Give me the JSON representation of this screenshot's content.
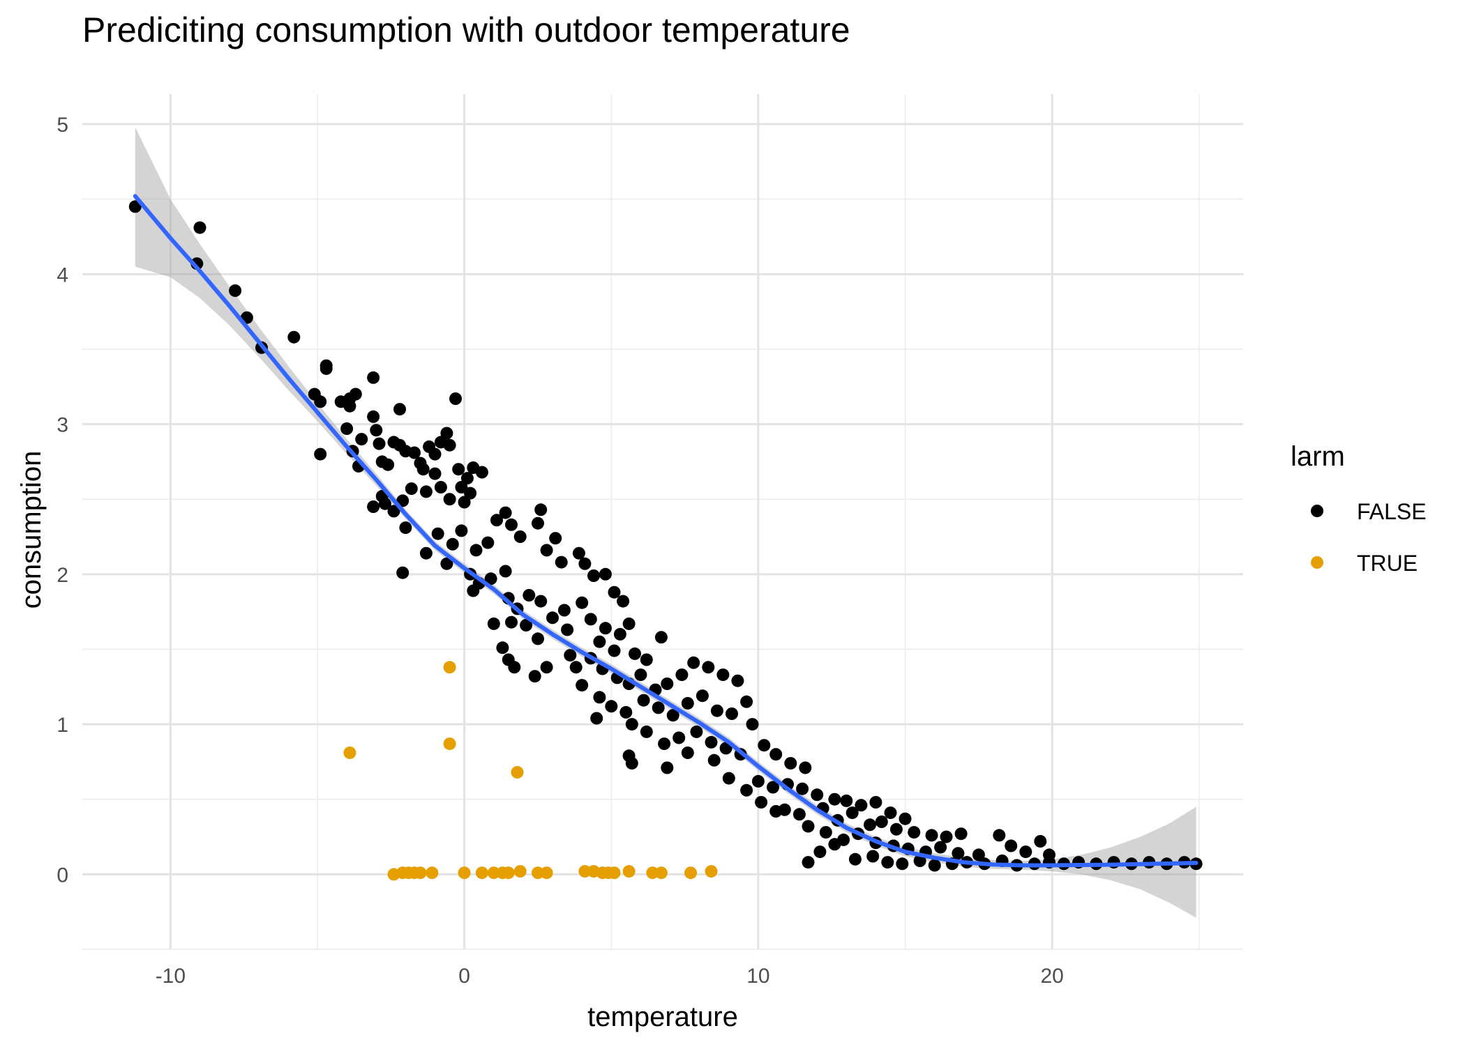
{
  "chart_data": {
    "type": "scatter",
    "title": "Prediciting consumption with outdoor temperature",
    "xlabel": "temperature",
    "ylabel": "consumption",
    "xlim": [
      -13,
      26.5
    ],
    "ylim": [
      -0.5,
      5.2
    ],
    "x_ticks": [
      -10,
      0,
      10,
      20
    ],
    "x_tick_labels": [
      "-10",
      "0",
      "10",
      "20"
    ],
    "y_ticks": [
      0,
      1,
      2,
      3,
      4,
      5
    ],
    "y_tick_labels": [
      "0",
      "1",
      "2",
      "3",
      "4",
      "5"
    ],
    "grid": true,
    "legend": {
      "title": "larm",
      "position": "right",
      "entries": [
        {
          "label": "FALSE",
          "color": "#000000"
        },
        {
          "label": "TRUE",
          "color": "#E69F00"
        }
      ]
    },
    "series": [
      {
        "name": "FALSE",
        "color": "#000000",
        "points": [
          [
            -11.2,
            4.45
          ],
          [
            -9.0,
            4.31
          ],
          [
            -9.1,
            4.07
          ],
          [
            -7.8,
            3.89
          ],
          [
            -7.4,
            3.71
          ],
          [
            -6.9,
            3.51
          ],
          [
            -5.8,
            3.58
          ],
          [
            -4.7,
            3.39
          ],
          [
            -4.7,
            3.37
          ],
          [
            -5.1,
            3.2
          ],
          [
            -4.9,
            3.15
          ],
          [
            -4.2,
            3.15
          ],
          [
            -3.9,
            3.17
          ],
          [
            -3.7,
            3.2
          ],
          [
            -3.9,
            3.12
          ],
          [
            -3.1,
            3.31
          ],
          [
            -4.0,
            2.97
          ],
          [
            -3.5,
            2.9
          ],
          [
            -3.8,
            2.82
          ],
          [
            -4.9,
            2.8
          ],
          [
            -3.6,
            2.72
          ],
          [
            -3.1,
            3.05
          ],
          [
            -3.0,
            2.96
          ],
          [
            -2.9,
            2.87
          ],
          [
            -2.8,
            2.75
          ],
          [
            -2.6,
            2.73
          ],
          [
            -2.8,
            2.52
          ],
          [
            -3.1,
            2.45
          ],
          [
            -2.7,
            2.47
          ],
          [
            -2.2,
            3.1
          ],
          [
            -2.4,
            2.88
          ],
          [
            -2.2,
            2.86
          ],
          [
            -2.0,
            2.82
          ],
          [
            -1.7,
            2.81
          ],
          [
            -1.5,
            2.74
          ],
          [
            -1.2,
            2.85
          ],
          [
            -1.0,
            2.8
          ],
          [
            -0.8,
            2.88
          ],
          [
            -0.6,
            2.94
          ],
          [
            -0.5,
            2.86
          ],
          [
            -1.4,
            2.7
          ],
          [
            -1.0,
            2.67
          ],
          [
            -0.3,
            3.17
          ],
          [
            -0.2,
            2.7
          ],
          [
            0.1,
            2.64
          ],
          [
            0.3,
            2.71
          ],
          [
            0.6,
            2.68
          ],
          [
            -0.1,
            2.58
          ],
          [
            0.2,
            2.54
          ],
          [
            -0.5,
            2.5
          ],
          [
            -0.8,
            2.58
          ],
          [
            0.0,
            2.48
          ],
          [
            -1.3,
            2.55
          ],
          [
            -1.8,
            2.57
          ],
          [
            -2.1,
            2.49
          ],
          [
            -2.4,
            2.42
          ],
          [
            -2.0,
            2.31
          ],
          [
            -1.3,
            2.14
          ],
          [
            -0.9,
            2.27
          ],
          [
            -0.4,
            2.2
          ],
          [
            -0.1,
            2.29
          ],
          [
            0.4,
            2.16
          ],
          [
            0.8,
            2.21
          ],
          [
            1.1,
            2.36
          ],
          [
            1.4,
            2.41
          ],
          [
            1.6,
            2.33
          ],
          [
            1.9,
            2.25
          ],
          [
            2.5,
            2.34
          ],
          [
            2.6,
            2.43
          ],
          [
            3.1,
            2.24
          ],
          [
            0.2,
            2.0
          ],
          [
            -0.6,
            2.07
          ],
          [
            -2.1,
            2.01
          ],
          [
            0.5,
            1.94
          ],
          [
            0.9,
            1.97
          ],
          [
            1.4,
            2.02
          ],
          [
            2.8,
            2.16
          ],
          [
            3.3,
            2.08
          ],
          [
            3.9,
            2.14
          ],
          [
            4.1,
            2.07
          ],
          [
            4.4,
            1.99
          ],
          [
            4.8,
            2.0
          ],
          [
            5.1,
            1.88
          ],
          [
            5.4,
            1.82
          ],
          [
            0.3,
            1.89
          ],
          [
            1.5,
            1.84
          ],
          [
            1.8,
            1.77
          ],
          [
            2.2,
            1.86
          ],
          [
            2.6,
            1.82
          ],
          [
            3.0,
            1.71
          ],
          [
            3.4,
            1.76
          ],
          [
            4.0,
            1.81
          ],
          [
            4.3,
            1.7
          ],
          [
            4.8,
            1.64
          ],
          [
            5.3,
            1.6
          ],
          [
            5.6,
            1.67
          ],
          [
            1.0,
            1.67
          ],
          [
            1.6,
            1.68
          ],
          [
            2.1,
            1.66
          ],
          [
            2.5,
            1.57
          ],
          [
            3.5,
            1.63
          ],
          [
            4.6,
            1.55
          ],
          [
            5.1,
            1.49
          ],
          [
            5.8,
            1.47
          ],
          [
            6.2,
            1.43
          ],
          [
            6.7,
            1.58
          ],
          [
            1.3,
            1.51
          ],
          [
            1.5,
            1.43
          ],
          [
            1.7,
            1.38
          ],
          [
            2.4,
            1.32
          ],
          [
            2.8,
            1.38
          ],
          [
            3.6,
            1.46
          ],
          [
            3.8,
            1.38
          ],
          [
            4.3,
            1.44
          ],
          [
            4.7,
            1.37
          ],
          [
            5.2,
            1.31
          ],
          [
            5.6,
            1.27
          ],
          [
            6.0,
            1.33
          ],
          [
            6.5,
            1.23
          ],
          [
            6.9,
            1.27
          ],
          [
            7.4,
            1.33
          ],
          [
            7.8,
            1.41
          ],
          [
            8.3,
            1.38
          ],
          [
            8.8,
            1.33
          ],
          [
            9.3,
            1.29
          ],
          [
            4.0,
            1.26
          ],
          [
            4.6,
            1.18
          ],
          [
            5.0,
            1.12
          ],
          [
            5.5,
            1.08
          ],
          [
            6.1,
            1.16
          ],
          [
            6.6,
            1.11
          ],
          [
            7.1,
            1.06
          ],
          [
            7.6,
            1.14
          ],
          [
            8.1,
            1.19
          ],
          [
            8.6,
            1.09
          ],
          [
            9.1,
            1.07
          ],
          [
            9.6,
            1.15
          ],
          [
            4.5,
            1.04
          ],
          [
            5.7,
            1.0
          ],
          [
            6.2,
            0.95
          ],
          [
            6.8,
            0.87
          ],
          [
            7.3,
            0.91
          ],
          [
            7.9,
            0.95
          ],
          [
            8.4,
            0.88
          ],
          [
            8.9,
            0.84
          ],
          [
            9.4,
            0.8
          ],
          [
            9.8,
            1.0
          ],
          [
            10.2,
            0.86
          ],
          [
            10.6,
            0.8
          ],
          [
            11.1,
            0.74
          ],
          [
            11.6,
            0.71
          ],
          [
            5.6,
            0.79
          ],
          [
            5.7,
            0.74
          ],
          [
            6.9,
            0.71
          ],
          [
            7.6,
            0.81
          ],
          [
            8.5,
            0.76
          ],
          [
            9.0,
            0.64
          ],
          [
            9.6,
            0.56
          ],
          [
            10.0,
            0.62
          ],
          [
            10.5,
            0.58
          ],
          [
            11.0,
            0.6
          ],
          [
            11.5,
            0.57
          ],
          [
            12.0,
            0.53
          ],
          [
            12.6,
            0.5
          ],
          [
            13.0,
            0.49
          ],
          [
            13.5,
            0.46
          ],
          [
            14.0,
            0.48
          ],
          [
            14.5,
            0.41
          ],
          [
            15.0,
            0.37
          ],
          [
            10.1,
            0.48
          ],
          [
            10.9,
            0.43
          ],
          [
            11.4,
            0.4
          ],
          [
            12.2,
            0.44
          ],
          [
            12.7,
            0.36
          ],
          [
            13.2,
            0.41
          ],
          [
            13.8,
            0.33
          ],
          [
            14.2,
            0.35
          ],
          [
            14.7,
            0.3
          ],
          [
            15.3,
            0.28
          ],
          [
            15.9,
            0.26
          ],
          [
            16.4,
            0.25
          ],
          [
            16.9,
            0.27
          ],
          [
            10.6,
            0.42
          ],
          [
            11.7,
            0.32
          ],
          [
            12.3,
            0.28
          ],
          [
            12.9,
            0.23
          ],
          [
            13.4,
            0.27
          ],
          [
            14.0,
            0.21
          ],
          [
            14.6,
            0.19
          ],
          [
            15.1,
            0.17
          ],
          [
            15.7,
            0.15
          ],
          [
            16.2,
            0.18
          ],
          [
            16.8,
            0.14
          ],
          [
            17.5,
            0.13
          ],
          [
            18.2,
            0.26
          ],
          [
            18.6,
            0.19
          ],
          [
            19.1,
            0.15
          ],
          [
            19.6,
            0.22
          ],
          [
            19.9,
            0.13
          ],
          [
            11.7,
            0.08
          ],
          [
            12.1,
            0.15
          ],
          [
            12.6,
            0.2
          ],
          [
            13.3,
            0.1
          ],
          [
            13.9,
            0.12
          ],
          [
            14.4,
            0.08
          ],
          [
            14.9,
            0.07
          ],
          [
            15.5,
            0.09
          ],
          [
            16.0,
            0.06
          ],
          [
            16.6,
            0.07
          ],
          [
            17.1,
            0.08
          ],
          [
            17.7,
            0.07
          ],
          [
            18.3,
            0.09
          ],
          [
            18.8,
            0.06
          ],
          [
            19.4,
            0.07
          ],
          [
            19.9,
            0.08
          ],
          [
            20.4,
            0.07
          ],
          [
            20.9,
            0.08
          ],
          [
            21.5,
            0.07
          ],
          [
            22.1,
            0.08
          ],
          [
            22.7,
            0.07
          ],
          [
            23.3,
            0.08
          ],
          [
            23.9,
            0.07
          ],
          [
            24.5,
            0.08
          ],
          [
            24.9,
            0.07
          ]
        ]
      },
      {
        "name": "TRUE",
        "color": "#E69F00",
        "points": [
          [
            -0.5,
            1.38
          ],
          [
            -3.9,
            0.81
          ],
          [
            -0.5,
            0.87
          ],
          [
            1.8,
            0.68
          ],
          [
            -2.4,
            0.0
          ],
          [
            -2.1,
            0.01
          ],
          [
            -1.9,
            0.01
          ],
          [
            -1.7,
            0.01
          ],
          [
            -1.5,
            0.01
          ],
          [
            -1.1,
            0.01
          ],
          [
            0.0,
            0.01
          ],
          [
            0.6,
            0.01
          ],
          [
            1.0,
            0.01
          ],
          [
            1.3,
            0.01
          ],
          [
            1.5,
            0.01
          ],
          [
            1.9,
            0.02
          ],
          [
            2.5,
            0.01
          ],
          [
            2.8,
            0.01
          ],
          [
            4.1,
            0.02
          ],
          [
            4.4,
            0.02
          ],
          [
            4.7,
            0.01
          ],
          [
            4.9,
            0.01
          ],
          [
            5.1,
            0.01
          ],
          [
            5.6,
            0.02
          ],
          [
            6.4,
            0.01
          ],
          [
            6.7,
            0.01
          ],
          [
            7.7,
            0.01
          ],
          [
            8.4,
            0.02
          ]
        ]
      }
    ],
    "smooth": {
      "color": "#3366FF",
      "ribbon_color": "#999999",
      "points": [
        [
          -11.2,
          4.52,
          4.05,
          4.98
        ],
        [
          -10.0,
          4.24,
          3.98,
          4.5
        ],
        [
          -9.0,
          4.02,
          3.84,
          4.2
        ],
        [
          -8.0,
          3.79,
          3.66,
          3.92
        ],
        [
          -7.0,
          3.55,
          3.45,
          3.65
        ],
        [
          -6.0,
          3.31,
          3.23,
          3.39
        ],
        [
          -5.0,
          3.08,
          3.02,
          3.14
        ],
        [
          -4.0,
          2.85,
          2.8,
          2.9
        ],
        [
          -3.0,
          2.63,
          2.59,
          2.67
        ],
        [
          -2.0,
          2.4,
          2.37,
          2.43
        ],
        [
          -1.0,
          2.19,
          2.16,
          2.22
        ],
        [
          0.0,
          2.04,
          2.01,
          2.07
        ],
        [
          1.0,
          1.9,
          1.87,
          1.93
        ],
        [
          2.0,
          1.73,
          1.7,
          1.76
        ],
        [
          3.0,
          1.6,
          1.57,
          1.63
        ],
        [
          4.0,
          1.48,
          1.45,
          1.51
        ],
        [
          5.0,
          1.37,
          1.34,
          1.4
        ],
        [
          6.0,
          1.25,
          1.22,
          1.28
        ],
        [
          7.0,
          1.13,
          1.1,
          1.16
        ],
        [
          8.0,
          1.01,
          0.98,
          1.04
        ],
        [
          9.0,
          0.88,
          0.85,
          0.91
        ],
        [
          10.0,
          0.72,
          0.69,
          0.75
        ],
        [
          11.0,
          0.57,
          0.54,
          0.6
        ],
        [
          12.0,
          0.43,
          0.4,
          0.46
        ],
        [
          13.0,
          0.31,
          0.28,
          0.34
        ],
        [
          14.0,
          0.22,
          0.19,
          0.25
        ],
        [
          15.0,
          0.15,
          0.12,
          0.18
        ],
        [
          16.0,
          0.11,
          0.08,
          0.14
        ],
        [
          17.0,
          0.08,
          0.05,
          0.11
        ],
        [
          18.0,
          0.065,
          0.035,
          0.095
        ],
        [
          19.0,
          0.06,
          0.03,
          0.09
        ],
        [
          20.0,
          0.06,
          0.02,
          0.1
        ],
        [
          21.0,
          0.062,
          0.0,
          0.13
        ],
        [
          22.0,
          0.064,
          -0.04,
          0.18
        ],
        [
          23.0,
          0.068,
          -0.1,
          0.25
        ],
        [
          24.0,
          0.072,
          -0.19,
          0.34
        ],
        [
          24.9,
          0.076,
          -0.29,
          0.45
        ]
      ]
    }
  }
}
